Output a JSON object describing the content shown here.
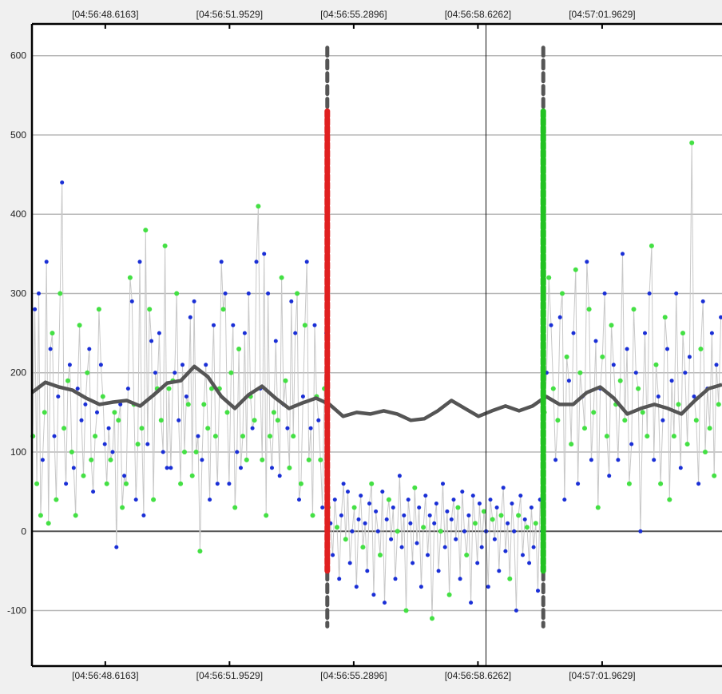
{
  "chart_data": {
    "type": "scatter",
    "title": "",
    "xlabel": "",
    "ylabel": "",
    "x_ticks": [
      "[04:56:48.6163]",
      "[04:56:51.9529]",
      "[04:56:55.2896]",
      "[04:56:58.6262]",
      "[04:57:01.9629]"
    ],
    "y_ticks": [
      600,
      500,
      400,
      300,
      200,
      100,
      0,
      -100
    ],
    "ylim": [
      -170,
      640
    ],
    "grid": true,
    "colors": {
      "series_a": "#1a2fd6",
      "series_b": "#44e044",
      "connector": "#c8c8c8",
      "smooth": "#555555",
      "marker_start": "#e02020",
      "marker_end": "#22c222"
    },
    "series": [
      {
        "values": [
          120,
          280,
          60,
          300,
          20,
          90,
          150,
          340,
          10,
          230,
          250,
          120,
          40,
          170,
          300,
          440,
          130,
          60,
          190,
          210,
          100,
          80,
          20,
          180,
          260,
          140,
          70,
          160,
          200,
          230,
          90,
          50,
          120,
          150,
          280,
          210,
          170,
          110,
          60,
          130,
          90,
          100,
          150,
          -20,
          140,
          160,
          30,
          70,
          60,
          180,
          320,
          290,
          160,
          40,
          110,
          340,
          130,
          20,
          380,
          110,
          280,
          240,
          40,
          200,
          180,
          250,
          140,
          100,
          360,
          80,
          180,
          80,
          190,
          200,
          300,
          140,
          60,
          210,
          100,
          170,
          160,
          270,
          70,
          290,
          100,
          120,
          -25,
          90,
          160,
          210,
          130,
          40,
          180,
          260,
          120,
          60,
          180,
          340,
          280,
          300,
          150,
          60,
          200,
          260,
          30,
          100,
          230,
          80,
          120,
          250,
          90,
          300,
          170,
          130,
          140,
          340,
          410,
          180,
          90,
          350,
          20,
          300,
          120,
          80,
          150,
          240,
          140,
          70,
          320,
          160,
          190,
          130,
          80,
          290,
          120,
          250,
          300,
          40,
          60,
          170,
          260,
          340,
          90,
          130,
          20,
          260,
          170,
          140,
          90,
          30,
          180,
          250
        ],
        "region": "pre"
      },
      {
        "values": [
          30,
          10,
          -30,
          40,
          5,
          -60,
          20,
          60,
          -10,
          50,
          -40,
          0,
          30,
          -70,
          15,
          45,
          -20,
          10,
          -50,
          35,
          60,
          -80,
          25,
          0,
          -30,
          50,
          -90,
          15,
          40,
          -10,
          30,
          -60,
          0,
          70,
          -20,
          20,
          -100,
          40,
          10,
          -40,
          55,
          -15,
          30,
          -70,
          5,
          45,
          -30,
          20,
          -110,
          10,
          35,
          -50,
          0,
          60,
          -20,
          25,
          -80,
          15,
          40,
          -10,
          30,
          -60,
          50,
          0,
          -30,
          20,
          -90,
          45,
          10,
          -40,
          35,
          -20,
          25,
          0,
          -70,
          40,
          15,
          -10,
          30,
          -50,
          20,
          55,
          -25,
          10,
          -60,
          35,
          0,
          -100,
          20,
          45,
          -30,
          15,
          5,
          -40,
          30,
          -20,
          10,
          -75,
          40,
          0
        ],
        "region": "mid"
      },
      {
        "values": [
          150,
          200,
          320,
          260,
          180,
          90,
          140,
          270,
          300,
          40,
          220,
          190,
          110,
          250,
          330,
          60,
          200,
          170,
          130,
          340,
          280,
          90,
          150,
          240,
          30,
          180,
          220,
          300,
          120,
          70,
          260,
          210,
          160,
          90,
          190,
          350,
          140,
          230,
          60,
          110,
          280,
          200,
          180,
          0,
          150,
          250,
          120,
          300,
          360,
          90,
          210,
          170,
          60,
          140,
          270,
          230,
          40,
          190,
          120,
          300,
          160,
          80,
          250,
          200,
          110,
          220,
          490,
          170,
          140,
          60,
          230,
          290,
          100,
          180,
          130,
          250,
          70,
          210,
          160,
          270
        ],
        "region": "post"
      }
    ],
    "smoothed": [
      175,
      188,
      182,
      178,
      168,
      160,
      163,
      165,
      158,
      172,
      187,
      190,
      208,
      195,
      170,
      155,
      172,
      183,
      168,
      155,
      162,
      168,
      160,
      145,
      150,
      148,
      152,
      148,
      140,
      142,
      152,
      165,
      155,
      145,
      152,
      158,
      152,
      158,
      170,
      160,
      160,
      175,
      182,
      168,
      148,
      155,
      160,
      155,
      148,
      165,
      180,
      185
    ],
    "markers": [
      {
        "name": "start",
        "x_fraction": 0.428,
        "top": 610,
        "bottom": -120,
        "colored_top": 530,
        "colored_bottom": -50
      },
      {
        "name": "end",
        "x_fraction": 0.741,
        "top": 610,
        "bottom": -120,
        "colored_top": 530,
        "colored_bottom": -50
      }
    ],
    "cursor_x_fraction": 0.658
  }
}
